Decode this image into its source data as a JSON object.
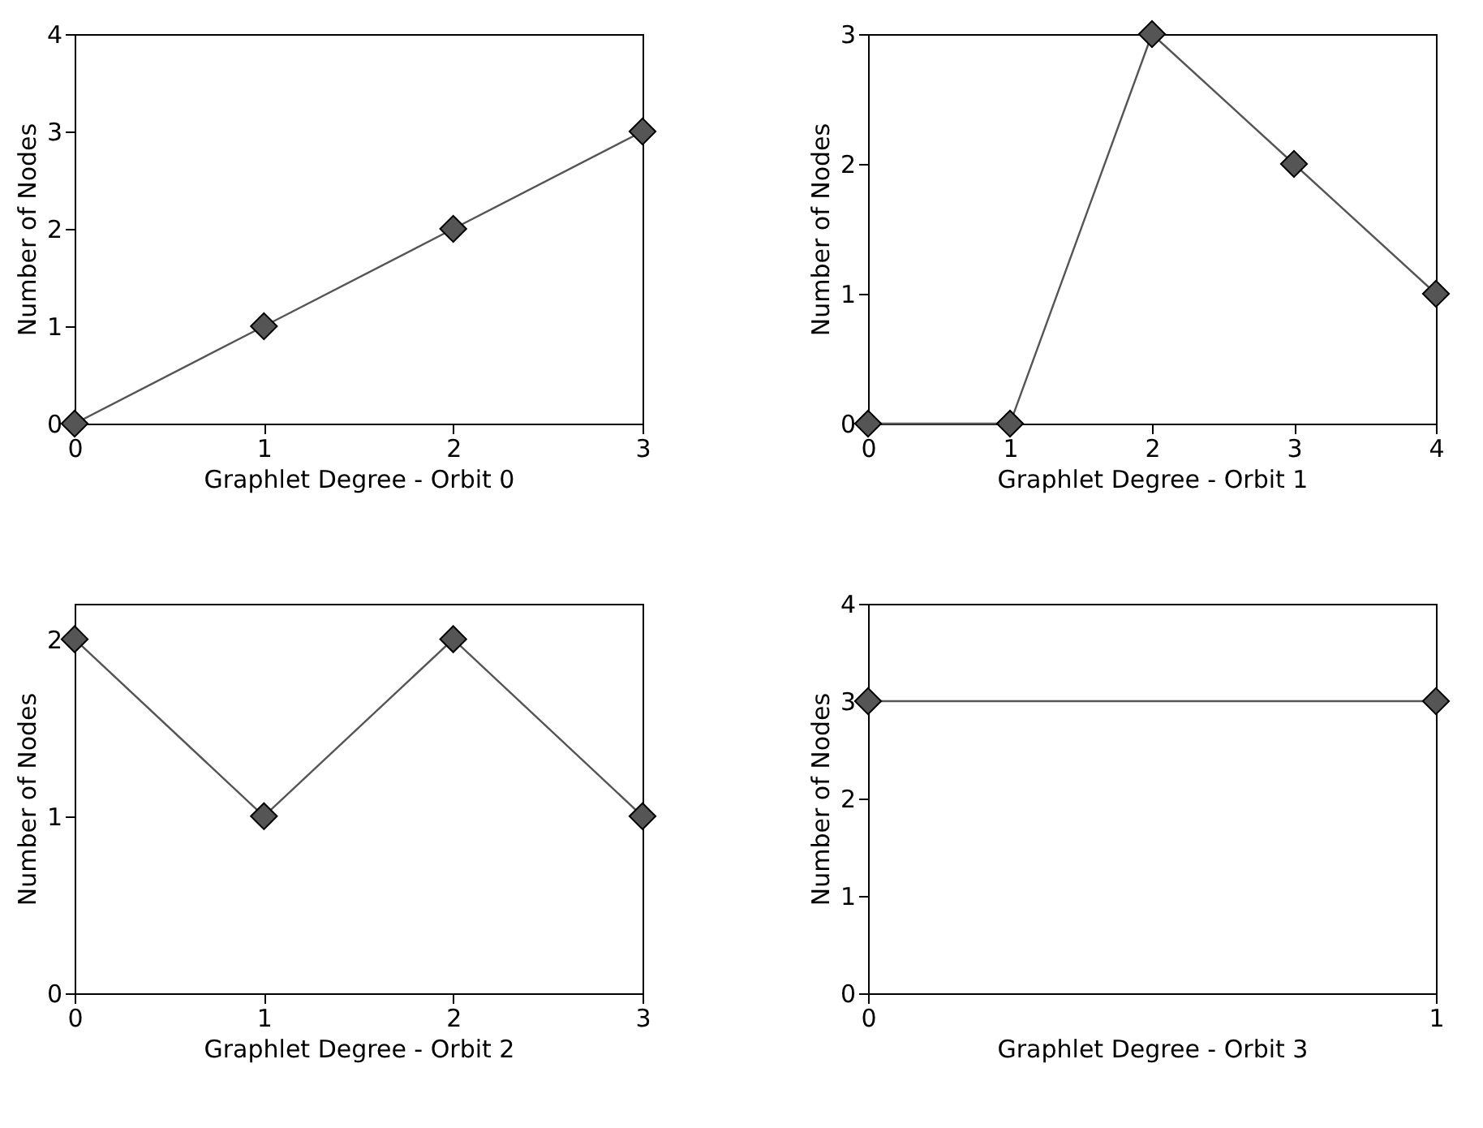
{
  "chart_data": [
    {
      "type": "line",
      "x": [
        0,
        1,
        2,
        3
      ],
      "series": [
        {
          "color": "#555555",
          "values": [
            0,
            1,
            2,
            3
          ]
        }
      ],
      "xlim": [
        0,
        3
      ],
      "ylim": [
        0,
        4
      ],
      "xticks": [
        0,
        1,
        2,
        3
      ],
      "yticks": [
        0,
        1,
        2,
        3,
        4
      ],
      "xlabel": "Graphlet Degree - Orbit 0",
      "ylabel": "Number of Nodes",
      "marker": "diamond",
      "grid": false
    },
    {
      "type": "line",
      "x": [
        0,
        1,
        2,
        3,
        4
      ],
      "series": [
        {
          "color": "#555555",
          "values": [
            0,
            0,
            3,
            2,
            1
          ]
        }
      ],
      "xlim": [
        0,
        4
      ],
      "ylim": [
        0,
        3
      ],
      "xticks": [
        0,
        1,
        2,
        3,
        4
      ],
      "yticks": [
        0,
        1,
        2,
        3
      ],
      "xlabel": "Graphlet Degree - Orbit 1",
      "ylabel": "Number of Nodes",
      "marker": "diamond",
      "grid": false
    },
    {
      "type": "line",
      "x": [
        0,
        1,
        2,
        3
      ],
      "series": [
        {
          "color": "#555555",
          "values": [
            2,
            1,
            2,
            1
          ]
        }
      ],
      "xlim": [
        0,
        3
      ],
      "ylim": [
        0,
        2.2
      ],
      "xticks": [
        0,
        1,
        2,
        3
      ],
      "yticks": [
        0,
        1,
        2
      ],
      "xlabel": "Graphlet Degree - Orbit 2",
      "ylabel": "Number of Nodes",
      "marker": "diamond",
      "grid": false
    },
    {
      "type": "line",
      "x": [
        0,
        1
      ],
      "series": [
        {
          "color": "#555555",
          "values": [
            3,
            3
          ]
        }
      ],
      "xlim": [
        0,
        1
      ],
      "ylim": [
        0,
        4
      ],
      "xticks": [
        0,
        1
      ],
      "yticks": [
        0,
        1,
        2,
        3,
        4
      ],
      "xlabel": "Graphlet Degree - Orbit 3",
      "ylabel": "Number of Nodes",
      "marker": "diamond",
      "grid": false
    }
  ]
}
